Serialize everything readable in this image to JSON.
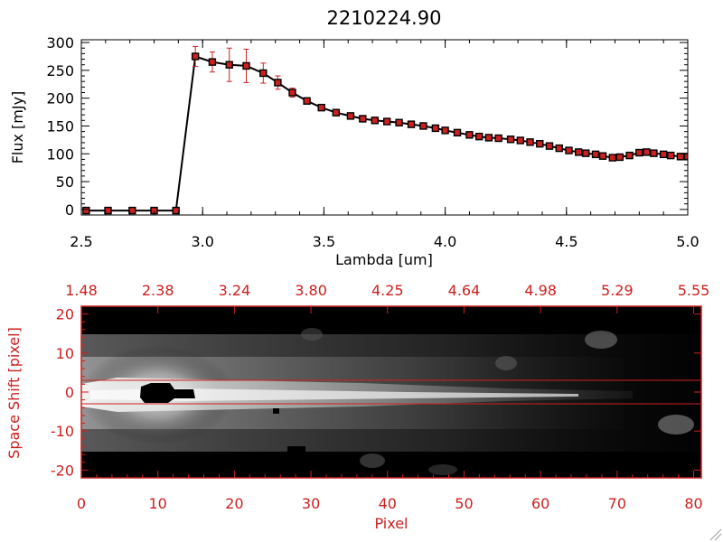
{
  "chart_data": [
    {
      "type": "line",
      "title": "2210224.90",
      "xlabel": "Lambda [um]",
      "ylabel": "Flux [mJy]",
      "xlim": [
        2.5,
        5.0
      ],
      "ylim": [
        -10,
        305
      ],
      "xticks": [
        2.5,
        3.0,
        3.5,
        4.0,
        4.5,
        5.0
      ],
      "xtick_labels": [
        "2.5",
        "3.0",
        "3.5",
        "4.0",
        "4.5",
        "5.0"
      ],
      "yticks": [
        0,
        50,
        100,
        150,
        200,
        250,
        300
      ],
      "ytick_labels": [
        "0",
        "50",
        "100",
        "150",
        "200",
        "250",
        "300"
      ],
      "line_color": "#000000",
      "marker_color": "#cc2020",
      "errorbar_color": "#cc2020",
      "x": [
        2.52,
        2.61,
        2.71,
        2.8,
        2.89,
        2.97,
        3.04,
        3.11,
        3.18,
        3.25,
        3.31,
        3.37,
        3.43,
        3.49,
        3.55,
        3.61,
        3.66,
        3.71,
        3.76,
        3.81,
        3.86,
        3.91,
        3.96,
        4.0,
        4.05,
        4.1,
        4.14,
        4.18,
        4.22,
        4.27,
        4.31,
        4.35,
        4.39,
        4.43,
        4.47,
        4.51,
        4.55,
        4.58,
        4.62,
        4.65,
        4.69,
        4.72,
        4.76,
        4.8,
        4.83,
        4.86,
        4.9,
        4.93,
        4.97,
        5.0
      ],
      "y": [
        -2,
        -2,
        -2,
        -2,
        -2,
        275,
        265,
        260,
        258,
        245,
        228,
        210,
        195,
        183,
        174,
        168,
        163,
        160,
        158,
        156,
        153,
        150,
        146,
        142,
        138,
        134,
        131,
        129,
        128,
        126,
        124,
        121,
        118,
        114,
        110,
        106,
        103,
        101,
        99,
        96,
        93,
        94,
        97,
        102,
        103,
        101,
        99,
        97,
        95,
        95
      ],
      "yerr": [
        0,
        0,
        0,
        0,
        0,
        18,
        18,
        30,
        30,
        18,
        12,
        8,
        5,
        4,
        3,
        3,
        3,
        3,
        2,
        2,
        2,
        2,
        2,
        2,
        2,
        2,
        2,
        2,
        2,
        2,
        2,
        2,
        2,
        2,
        2,
        2,
        2,
        2,
        2,
        2,
        2,
        2,
        2,
        2,
        2,
        2,
        2,
        2,
        2,
        2
      ]
    },
    {
      "type": "heatmap",
      "xlabel": "Pixel",
      "ylabel": "Space Shift [pixel]",
      "xlim": [
        0,
        81
      ],
      "ylim": [
        -22,
        22
      ],
      "xticks": [
        0,
        10,
        20,
        30,
        40,
        50,
        60,
        70,
        80
      ],
      "xtick_labels": [
        "0",
        "10",
        "20",
        "30",
        "40",
        "50",
        "60",
        "70",
        "80"
      ],
      "yticks": [
        -20,
        -10,
        0,
        10,
        20
      ],
      "ytick_labels": [
        "-20",
        "-10",
        "0",
        "10",
        "20"
      ],
      "top_axis_tick_labels": [
        "1.48",
        "2.38",
        "3.24",
        "3.80",
        "4.25",
        "4.64",
        "4.98",
        "5.29",
        "5.55"
      ],
      "extraction_lines_y": [
        3,
        -3
      ],
      "axis_color": "#cc2020",
      "colormap": "grayscale"
    }
  ]
}
